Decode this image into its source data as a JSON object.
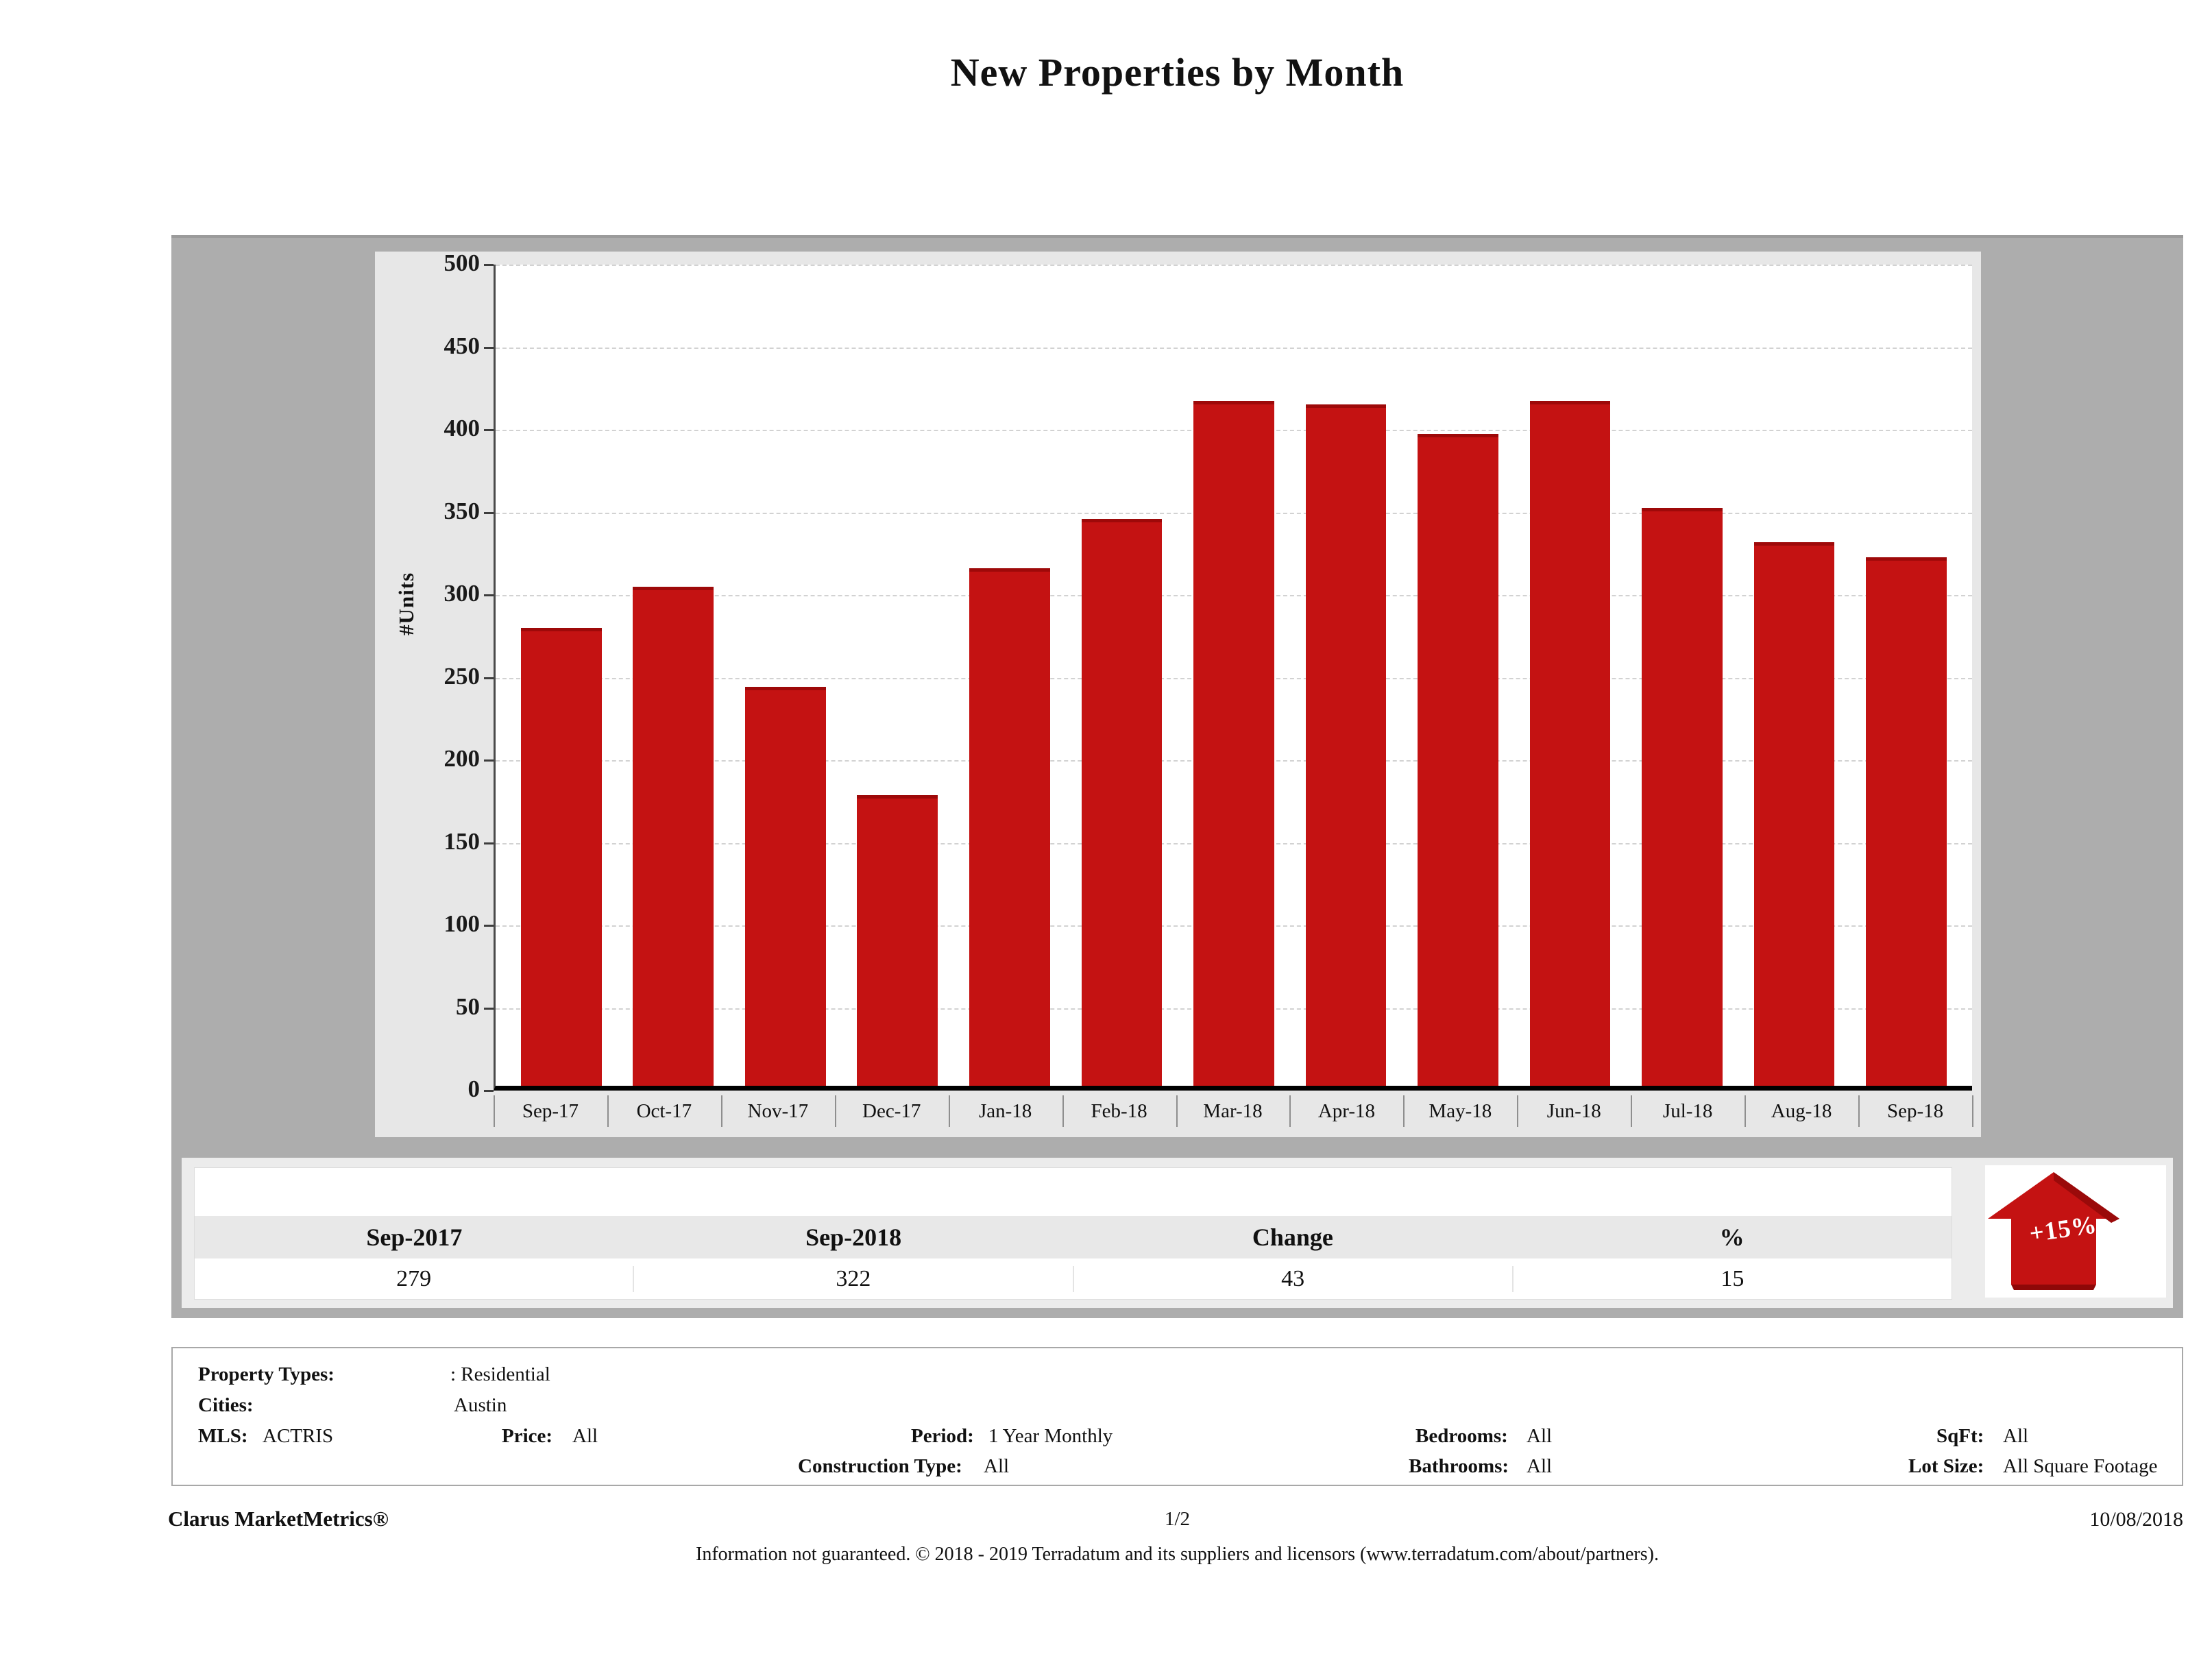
{
  "title": "New Properties by Month",
  "chart_data": {
    "type": "bar",
    "categories": [
      "Sep-17",
      "Oct-17",
      "Nov-17",
      "Dec-17",
      "Jan-18",
      "Feb-18",
      "Mar-18",
      "Apr-18",
      "May-18",
      "Jun-18",
      "Jul-18",
      "Aug-18",
      "Sep-18"
    ],
    "values": [
      279,
      304,
      243,
      177,
      315,
      345,
      417,
      415,
      397,
      417,
      352,
      331,
      322
    ],
    "title": "New Properties by Month",
    "xlabel": "",
    "ylabel": "#Units",
    "ylim": [
      0,
      500
    ],
    "ytick_step": 50,
    "yticks": [
      "500",
      "450",
      "400",
      "350",
      "300",
      "250",
      "200",
      "150",
      "100",
      "50",
      "0"
    ],
    "grid": "horizontal-dashed",
    "legend": "none",
    "bar_color": "#c41212",
    "bar_cap_color": "#9e0909"
  },
  "summary_table": {
    "columns": [
      "Sep-2017",
      "Sep-2018",
      "Change",
      "%"
    ],
    "values": [
      "279",
      "322",
      "43",
      "15"
    ],
    "badge": {
      "label": "+15%",
      "direction": "up",
      "color": "#c41212"
    }
  },
  "filters": {
    "property_types": {
      "label": "Property Types:",
      "value": ": Residential"
    },
    "cities": {
      "label": "Cities:",
      "value": "Austin"
    },
    "mls": {
      "label": "MLS:",
      "value": "ACTRIS"
    },
    "price": {
      "label": "Price:",
      "value": "All"
    },
    "period": {
      "label": "Period:",
      "value": "1 Year Monthly"
    },
    "construction": {
      "label": "Construction Type:",
      "value": "All"
    },
    "bedrooms": {
      "label": "Bedrooms:",
      "value": "All"
    },
    "bathrooms": {
      "label": "Bathrooms:",
      "value": "All"
    },
    "sqft": {
      "label": "SqFt:",
      "value": "All"
    },
    "lot_size": {
      "label": "Lot Size:",
      "value": "All Square Footage"
    }
  },
  "footer": {
    "brand": "Clarus MarketMetrics®",
    "page": "1/2",
    "date": "10/08/2018",
    "disclaimer": "Information not guaranteed. © 2018 - 2019 Terradatum and its suppliers and licensors (www.terradatum.com/about/partners)."
  }
}
